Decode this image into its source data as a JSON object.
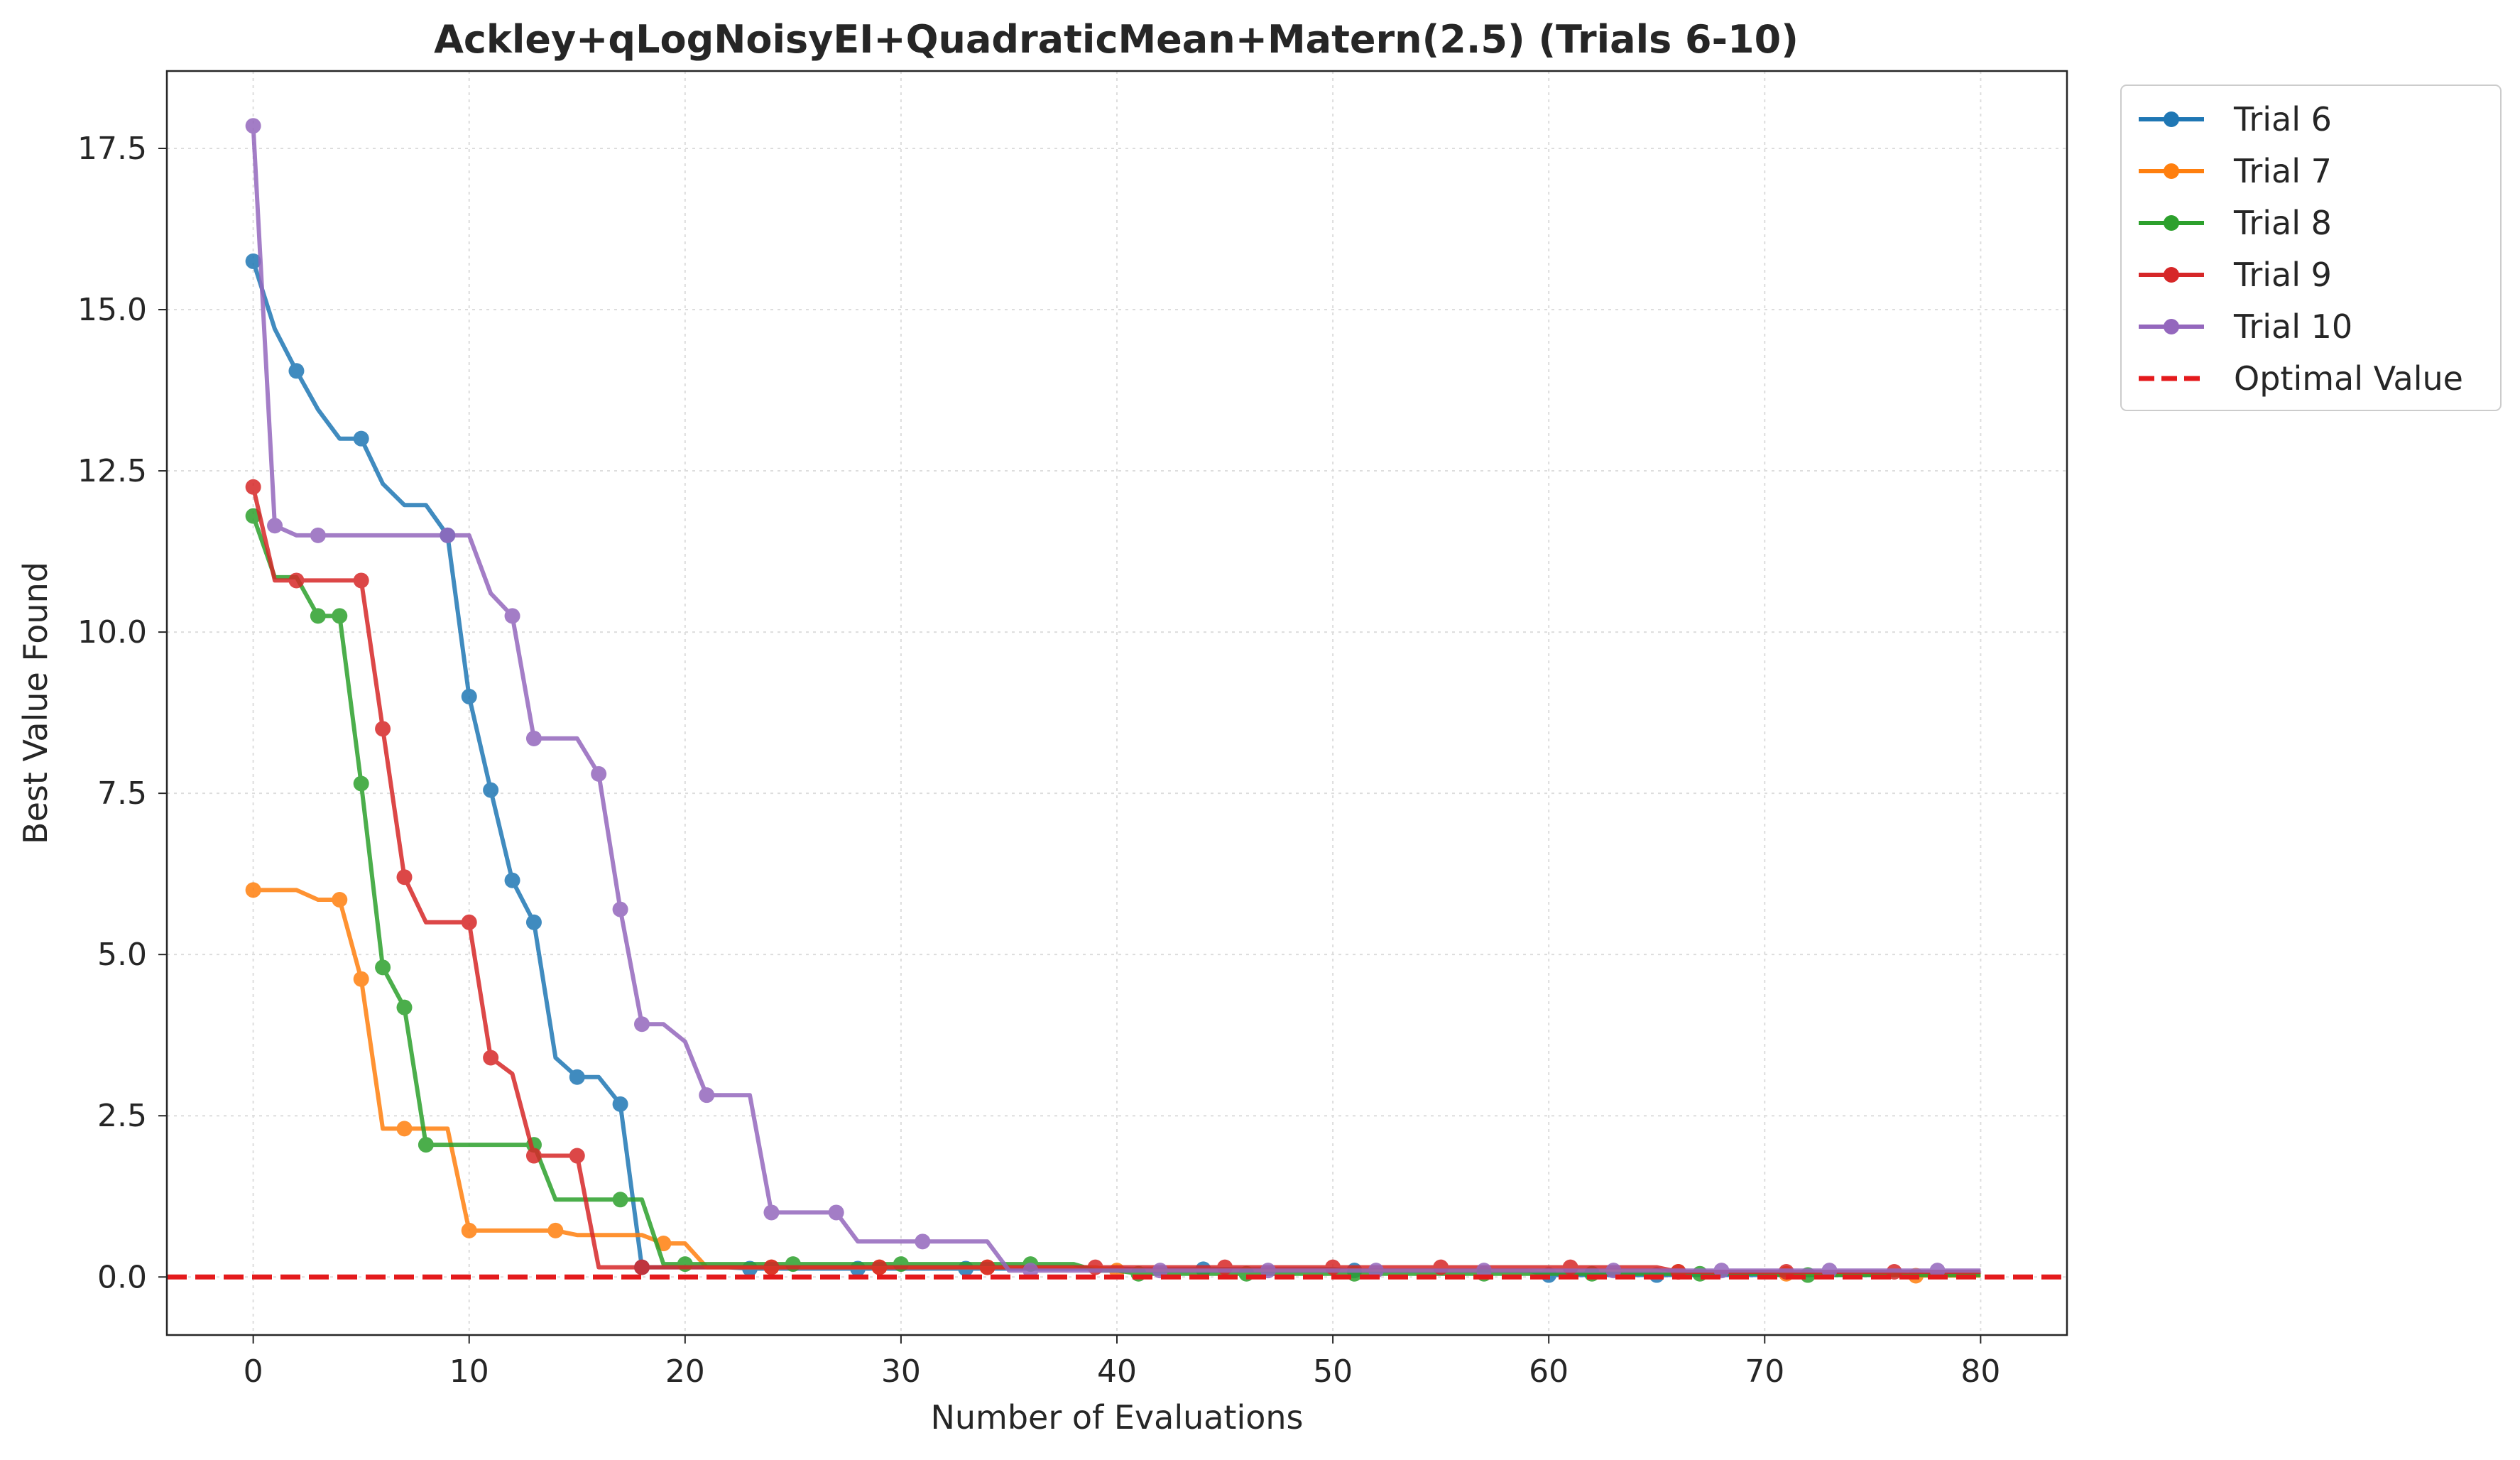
{
  "chart_data": {
    "type": "line",
    "title": "Ackley+qLogNoisyEI+QuadraticMean+Matern(2.5) (Trials 6-10)",
    "xlabel": "Number of Evaluations",
    "ylabel": "Best Value Found",
    "xlim": [
      -4,
      84
    ],
    "ylim": [
      -0.9,
      18.7
    ],
    "xticks": [
      0,
      10,
      20,
      30,
      40,
      50,
      60,
      70,
      80
    ],
    "yticks": [
      0.0,
      2.5,
      5.0,
      7.5,
      10.0,
      12.5,
      15.0,
      17.5
    ],
    "xtick_labels": [
      "0",
      "10",
      "20",
      "30",
      "40",
      "50",
      "60",
      "70",
      "80"
    ],
    "ytick_labels": [
      "0.0",
      "2.5",
      "5.0",
      "7.5",
      "10.0",
      "12.5",
      "15.0",
      "17.5"
    ],
    "grid": true,
    "legend_position": "outside-top-right",
    "reference_line": {
      "name": "Optimal Value",
      "y": 0.0,
      "color": "#e41a1c",
      "style": "dashed"
    },
    "series": [
      {
        "name": "Trial 6",
        "color": "#1f77b4",
        "x": [
          0,
          1,
          2,
          3,
          4,
          5,
          6,
          7,
          8,
          9,
          10,
          11,
          12,
          13,
          14,
          15,
          16,
          17,
          18,
          19,
          20,
          21,
          22,
          23,
          24,
          25,
          26,
          27,
          28,
          29,
          30,
          31,
          32,
          33,
          34,
          35,
          36,
          37,
          38,
          39,
          40,
          41,
          42,
          43,
          44,
          45,
          46,
          47,
          48,
          49,
          50,
          51,
          52,
          53,
          54,
          55,
          56,
          57,
          58,
          59,
          60,
          61,
          62,
          63,
          64,
          65,
          66,
          67,
          68,
          69,
          70,
          71,
          72,
          73,
          74,
          75,
          76,
          77,
          78,
          79,
          80
        ],
        "y": [
          15.75,
          14.7,
          14.05,
          13.45,
          13.0,
          13.0,
          12.3,
          11.97,
          11.97,
          11.5,
          9.0,
          7.55,
          6.15,
          5.5,
          3.4,
          3.1,
          3.1,
          2.68,
          0.15,
          0.15,
          0.15,
          0.15,
          0.15,
          0.13,
          0.13,
          0.13,
          0.13,
          0.13,
          0.13,
          0.13,
          0.13,
          0.13,
          0.13,
          0.13,
          0.13,
          0.13,
          0.13,
          0.13,
          0.13,
          0.13,
          0.13,
          0.12,
          0.12,
          0.12,
          0.12,
          0.12,
          0.12,
          0.12,
          0.12,
          0.12,
          0.12,
          0.1,
          0.1,
          0.1,
          0.1,
          0.1,
          0.1,
          0.1,
          0.1,
          0.1,
          0.03,
          0.03,
          0.03,
          0.03,
          0.03,
          0.03,
          0.03,
          0.03,
          0.03,
          0.03,
          0.03,
          0.03,
          0.03,
          0.03,
          0.03,
          0.03,
          0.03,
          0.03,
          0.03,
          0.03,
          0.03
        ],
        "markers": [
          0,
          2,
          5,
          9,
          10,
          11,
          12,
          13,
          15,
          17,
          18,
          23,
          28,
          33,
          44,
          51,
          60,
          65
        ]
      },
      {
        "name": "Trial 7",
        "color": "#ff7f0e",
        "x": [
          0,
          1,
          2,
          3,
          4,
          5,
          6,
          7,
          8,
          9,
          10,
          11,
          12,
          13,
          14,
          15,
          16,
          17,
          18,
          19,
          20,
          21,
          22,
          23,
          24,
          25,
          26,
          27,
          28,
          29,
          30,
          31,
          32,
          33,
          34,
          35,
          36,
          37,
          38,
          39,
          40,
          41,
          42,
          43,
          44,
          45,
          46,
          47,
          48,
          49,
          50,
          51,
          52,
          53,
          54,
          55,
          56,
          57,
          58,
          59,
          60,
          61,
          62,
          63,
          64,
          65,
          66,
          67,
          68,
          69,
          70,
          71,
          72,
          73,
          74,
          75,
          76,
          77,
          78,
          79,
          80
        ],
        "y": [
          6.0,
          6.0,
          6.0,
          5.85,
          5.85,
          4.62,
          2.3,
          2.3,
          2.3,
          2.3,
          0.72,
          0.72,
          0.72,
          0.72,
          0.72,
          0.65,
          0.65,
          0.65,
          0.65,
          0.52,
          0.52,
          0.15,
          0.15,
          0.15,
          0.15,
          0.15,
          0.15,
          0.15,
          0.15,
          0.15,
          0.15,
          0.15,
          0.15,
          0.15,
          0.15,
          0.15,
          0.15,
          0.15,
          0.15,
          0.15,
          0.1,
          0.1,
          0.1,
          0.1,
          0.1,
          0.1,
          0.1,
          0.1,
          0.1,
          0.1,
          0.1,
          0.1,
          0.1,
          0.1,
          0.1,
          0.1,
          0.1,
          0.1,
          0.1,
          0.1,
          0.1,
          0.1,
          0.1,
          0.1,
          0.1,
          0.1,
          0.08,
          0.08,
          0.08,
          0.08,
          0.08,
          0.05,
          0.05,
          0.05,
          0.05,
          0.05,
          0.05,
          0.02,
          0.02,
          0.02,
          0.02
        ],
        "markers": [
          0,
          4,
          5,
          7,
          10,
          14,
          19,
          24,
          29,
          34,
          40,
          66,
          71,
          77
        ]
      },
      {
        "name": "Trial 8",
        "color": "#2ca02c",
        "x": [
          0,
          1,
          2,
          3,
          4,
          5,
          6,
          7,
          8,
          9,
          10,
          11,
          12,
          13,
          14,
          15,
          16,
          17,
          18,
          19,
          20,
          21,
          22,
          23,
          24,
          25,
          26,
          27,
          28,
          29,
          30,
          31,
          32,
          33,
          34,
          35,
          36,
          37,
          38,
          39,
          40,
          41,
          42,
          43,
          44,
          45,
          46,
          47,
          48,
          49,
          50,
          51,
          52,
          53,
          54,
          55,
          56,
          57,
          58,
          59,
          60,
          61,
          62,
          63,
          64,
          65,
          66,
          67,
          68,
          69,
          70,
          71,
          72,
          73,
          74,
          75,
          76,
          77,
          78,
          79,
          80
        ],
        "y": [
          11.8,
          10.85,
          10.85,
          10.25,
          10.25,
          7.65,
          4.8,
          4.18,
          2.05,
          2.05,
          2.05,
          2.05,
          2.05,
          2.05,
          1.2,
          1.2,
          1.2,
          1.2,
          1.2,
          0.2,
          0.2,
          0.2,
          0.2,
          0.2,
          0.2,
          0.2,
          0.2,
          0.2,
          0.2,
          0.2,
          0.2,
          0.2,
          0.2,
          0.2,
          0.2,
          0.2,
          0.2,
          0.2,
          0.2,
          0.1,
          0.1,
          0.05,
          0.05,
          0.05,
          0.05,
          0.05,
          0.05,
          0.05,
          0.05,
          0.05,
          0.05,
          0.05,
          0.05,
          0.05,
          0.05,
          0.05,
          0.05,
          0.05,
          0.05,
          0.05,
          0.05,
          0.05,
          0.05,
          0.05,
          0.05,
          0.05,
          0.05,
          0.05,
          0.05,
          0.05,
          0.05,
          0.03,
          0.03,
          0.03,
          0.03,
          0.03,
          0.03,
          0.03,
          0.03,
          0.03,
          0.03
        ],
        "markers": [
          0,
          3,
          4,
          5,
          6,
          7,
          8,
          13,
          17,
          20,
          25,
          30,
          36,
          41,
          46,
          51,
          57,
          62,
          67,
          72
        ]
      },
      {
        "name": "Trial 9",
        "color": "#d62728",
        "x": [
          0,
          1,
          2,
          3,
          4,
          5,
          6,
          7,
          8,
          9,
          10,
          11,
          12,
          13,
          14,
          15,
          16,
          17,
          18,
          19,
          20,
          21,
          22,
          23,
          24,
          25,
          26,
          27,
          28,
          29,
          30,
          31,
          32,
          33,
          34,
          35,
          36,
          37,
          38,
          39,
          40,
          41,
          42,
          43,
          44,
          45,
          46,
          47,
          48,
          49,
          50,
          51,
          52,
          53,
          54,
          55,
          56,
          57,
          58,
          59,
          60,
          61,
          62,
          63,
          64,
          65,
          66,
          67,
          68,
          69,
          70,
          71,
          72,
          73,
          74,
          75,
          76,
          77,
          78,
          79,
          80
        ],
        "y": [
          12.25,
          10.8,
          10.8,
          10.8,
          10.8,
          10.8,
          8.5,
          6.2,
          5.5,
          5.5,
          5.5,
          3.4,
          3.15,
          1.88,
          1.88,
          1.88,
          0.15,
          0.15,
          0.15,
          0.15,
          0.15,
          0.15,
          0.15,
          0.15,
          0.15,
          0.15,
          0.15,
          0.15,
          0.15,
          0.15,
          0.15,
          0.15,
          0.15,
          0.15,
          0.15,
          0.15,
          0.15,
          0.15,
          0.15,
          0.15,
          0.15,
          0.15,
          0.15,
          0.15,
          0.15,
          0.15,
          0.15,
          0.15,
          0.15,
          0.15,
          0.15,
          0.15,
          0.15,
          0.15,
          0.15,
          0.15,
          0.15,
          0.15,
          0.15,
          0.15,
          0.15,
          0.15,
          0.15,
          0.15,
          0.15,
          0.15,
          0.08,
          0.08,
          0.08,
          0.08,
          0.08,
          0.08,
          0.08,
          0.08,
          0.08,
          0.08,
          0.08,
          0.08,
          0.08,
          0.08,
          0.08
        ],
        "markers": [
          0,
          2,
          5,
          6,
          7,
          10,
          11,
          13,
          15,
          18,
          24,
          29,
          34,
          39,
          45,
          50,
          55,
          61,
          66,
          71,
          76
        ]
      },
      {
        "name": "Trial 10",
        "color": "#9467bd",
        "x": [
          0,
          1,
          2,
          3,
          4,
          5,
          6,
          7,
          8,
          9,
          10,
          11,
          12,
          13,
          14,
          15,
          16,
          17,
          18,
          19,
          20,
          21,
          22,
          23,
          24,
          25,
          26,
          27,
          28,
          29,
          30,
          31,
          32,
          33,
          34,
          35,
          36,
          37,
          38,
          39,
          40,
          41,
          42,
          43,
          44,
          45,
          46,
          47,
          48,
          49,
          50,
          51,
          52,
          53,
          54,
          55,
          56,
          57,
          58,
          59,
          60,
          61,
          62,
          63,
          64,
          65,
          66,
          67,
          68,
          69,
          70,
          71,
          72,
          73,
          74,
          75,
          76,
          77,
          78,
          79,
          80
        ],
        "y": [
          17.85,
          11.65,
          11.5,
          11.5,
          11.5,
          11.5,
          11.5,
          11.5,
          11.5,
          11.5,
          11.5,
          10.6,
          10.25,
          8.35,
          8.35,
          8.35,
          7.8,
          5.7,
          3.92,
          3.92,
          3.65,
          2.82,
          2.82,
          2.82,
          1.0,
          1.0,
          1.0,
          1.0,
          0.55,
          0.55,
          0.55,
          0.55,
          0.55,
          0.55,
          0.55,
          0.1,
          0.1,
          0.1,
          0.1,
          0.1,
          0.1,
          0.1,
          0.1,
          0.1,
          0.1,
          0.1,
          0.1,
          0.1,
          0.1,
          0.1,
          0.1,
          0.1,
          0.1,
          0.1,
          0.1,
          0.1,
          0.1,
          0.1,
          0.1,
          0.1,
          0.1,
          0.1,
          0.1,
          0.1,
          0.1,
          0.1,
          0.1,
          0.1,
          0.1,
          0.1,
          0.1,
          0.1,
          0.1,
          0.1,
          0.1,
          0.1,
          0.1,
          0.1,
          0.1,
          0.1,
          0.1
        ],
        "markers": [
          0,
          1,
          3,
          9,
          12,
          13,
          16,
          17,
          18,
          21,
          24,
          27,
          31,
          36,
          42,
          47,
          52,
          57,
          63,
          68,
          73,
          78
        ]
      }
    ]
  }
}
